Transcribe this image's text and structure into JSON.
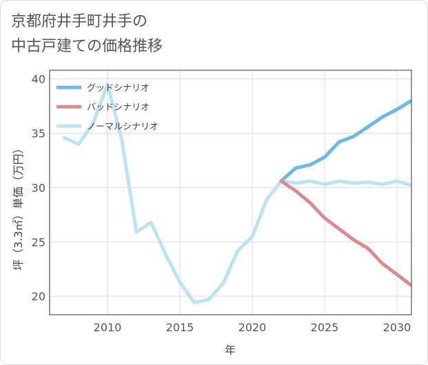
{
  "chart_data": {
    "type": "line",
    "title_lines": [
      "京都府井手町井手の",
      "中古戸建ての価格推移"
    ],
    "xlabel": "年",
    "ylabel": "坪（3.3㎡）単価（万円）",
    "xlim": [
      2006,
      2031
    ],
    "ylim": [
      18.3,
      40.8
    ],
    "x_ticks": [
      2010,
      2015,
      2020,
      2025,
      2030
    ],
    "y_ticks": [
      20,
      25,
      30,
      35,
      40
    ],
    "grid": true,
    "legend_position": "top-left",
    "series": [
      {
        "name": "ノーマルシナリオ",
        "color": "#bde3f0",
        "x": [
          2007,
          2008,
          2009,
          2010,
          2011,
          2012,
          2013,
          2014,
          2015,
          2016,
          2017,
          2018,
          2019,
          2020,
          2021,
          2022,
          2023,
          2024,
          2025,
          2026,
          2027,
          2028,
          2029,
          2030,
          2031
        ],
        "y": [
          34.6,
          34.0,
          35.9,
          39.5,
          34.3,
          25.9,
          26.8,
          23.9,
          21.3,
          19.4,
          19.7,
          21.2,
          24.2,
          25.5,
          28.9,
          30.6,
          30.4,
          30.6,
          30.3,
          30.6,
          30.4,
          30.5,
          30.3,
          30.6,
          30.2
        ]
      },
      {
        "name": "グッドシナリオ",
        "color": "#6cb8e8",
        "x": [
          2022,
          2023,
          2024,
          2025,
          2026,
          2027,
          2028,
          2029,
          2030,
          2031
        ],
        "y": [
          30.6,
          31.8,
          32.1,
          32.8,
          34.2,
          34.7,
          35.6,
          36.5,
          37.2,
          38.0
        ]
      },
      {
        "name": "バッドシナリオ",
        "color": "#dc8a91",
        "x": [
          2022,
          2023,
          2024,
          2025,
          2026,
          2027,
          2028,
          2029,
          2030,
          2031
        ],
        "y": [
          30.6,
          29.7,
          28.6,
          27.2,
          26.2,
          25.2,
          24.4,
          23.0,
          22.0,
          21.0
        ]
      }
    ],
    "legend_order": [
      "グッドシナリオ",
      "バッドシナリオ",
      "ノーマルシナリオ"
    ]
  }
}
